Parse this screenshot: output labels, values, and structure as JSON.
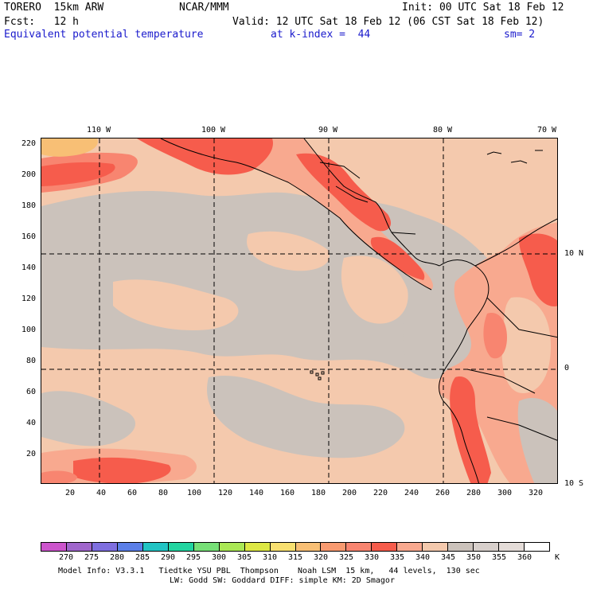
{
  "header": {
    "model_name": "TORERO  15km ARW",
    "org": "NCAR/MMM",
    "init": "Init: 00 UTC Sat 18 Feb 12",
    "fcst": "Fcst:   12 h",
    "valid": "Valid: 12 UTC Sat 18 Feb 12 (06 CST Sat 18 Feb 12)",
    "field": "Equivalent potential temperature",
    "level": "at k-index =  44",
    "smoothing": "sm= 2"
  },
  "map": {
    "y_ticks": [
      "220",
      "200",
      "180",
      "160",
      "140",
      "120",
      "100",
      "80",
      "60",
      "40",
      "20"
    ],
    "x_ticks": [
      "20",
      "40",
      "60",
      "80",
      "100",
      "120",
      "140",
      "160",
      "180",
      "200",
      "220",
      "240",
      "260",
      "280",
      "300",
      "320"
    ],
    "lon_labels": [
      "110 W",
      "100 W",
      "90 W",
      "80 W",
      "70 W"
    ],
    "lat_labels": [
      "10 N",
      "0",
      "10 S"
    ],
    "colors": {
      "background_warm": "#f4c9ad",
      "gray": "#cbc2bb",
      "light_salmon": "#f8a98f",
      "salmon": "#f88570",
      "red": "#f65c4c",
      "orange": "#f8bf75"
    }
  },
  "colorbar": {
    "labels": [
      "270",
      "275",
      "280",
      "285",
      "290",
      "295",
      "300",
      "305",
      "310",
      "315",
      "320",
      "325",
      "330",
      "335",
      "340",
      "345",
      "350",
      "355",
      "360"
    ],
    "unit": "K",
    "colors": [
      "#cc55cc",
      "#a066cc",
      "#7f6fe0",
      "#5b7fe8",
      "#22c4c4",
      "#22d4a0",
      "#77e077",
      "#aae855",
      "#dde844",
      "#f8e070",
      "#f8bf75",
      "#f89a70",
      "#f88570",
      "#f65c4c",
      "#f8a98f",
      "#f4c9ad",
      "#cbc2bb",
      "#d8d0cc",
      "#e4dcd8",
      "#ffffff"
    ]
  },
  "footer": {
    "line1": "Model Info: V3.3.1   Tiedtke YSU PBL  Thompson    Noah LSM  15 km,   44 levels,  130 sec",
    "line2": "LW: Godd SW: Goddard DIFF: simple KM: 2D Smagor"
  }
}
